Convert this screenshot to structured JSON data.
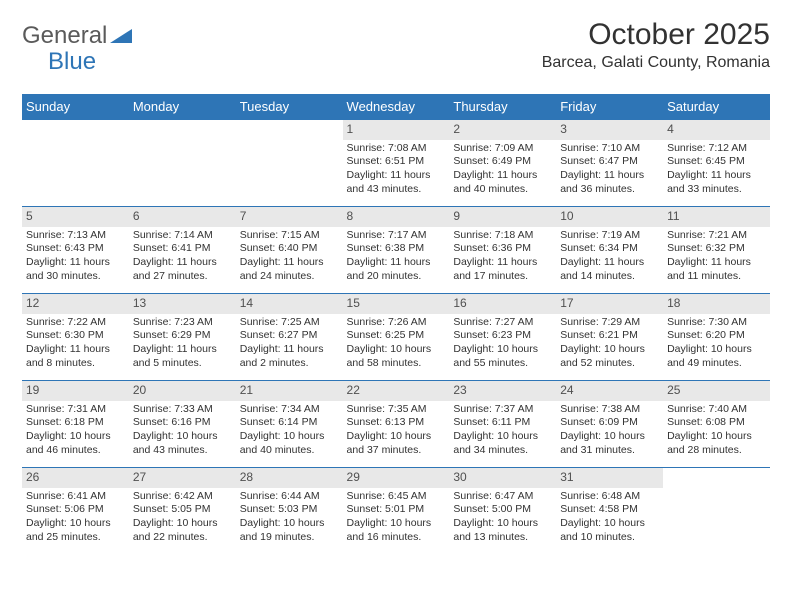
{
  "brand": {
    "main": "General",
    "sub": "Blue"
  },
  "title": "October 2025",
  "location": "Barcea, Galati County, Romania",
  "colors": {
    "header_bg": "#2e75b6",
    "header_fg": "#ffffff",
    "daynum_bg": "#e8e8e8",
    "border": "#2e75b6",
    "text": "#323232",
    "logo_gray": "#5a5a5a",
    "logo_blue": "#2e75b6"
  },
  "day_headers": [
    "Sunday",
    "Monday",
    "Tuesday",
    "Wednesday",
    "Thursday",
    "Friday",
    "Saturday"
  ],
  "weeks": [
    [
      {
        "n": "",
        "sr": "",
        "ss": "",
        "dl": ""
      },
      {
        "n": "",
        "sr": "",
        "ss": "",
        "dl": ""
      },
      {
        "n": "",
        "sr": "",
        "ss": "",
        "dl": ""
      },
      {
        "n": "1",
        "sr": "Sunrise: 7:08 AM",
        "ss": "Sunset: 6:51 PM",
        "dl": "Daylight: 11 hours and 43 minutes."
      },
      {
        "n": "2",
        "sr": "Sunrise: 7:09 AM",
        "ss": "Sunset: 6:49 PM",
        "dl": "Daylight: 11 hours and 40 minutes."
      },
      {
        "n": "3",
        "sr": "Sunrise: 7:10 AM",
        "ss": "Sunset: 6:47 PM",
        "dl": "Daylight: 11 hours and 36 minutes."
      },
      {
        "n": "4",
        "sr": "Sunrise: 7:12 AM",
        "ss": "Sunset: 6:45 PM",
        "dl": "Daylight: 11 hours and 33 minutes."
      }
    ],
    [
      {
        "n": "5",
        "sr": "Sunrise: 7:13 AM",
        "ss": "Sunset: 6:43 PM",
        "dl": "Daylight: 11 hours and 30 minutes."
      },
      {
        "n": "6",
        "sr": "Sunrise: 7:14 AM",
        "ss": "Sunset: 6:41 PM",
        "dl": "Daylight: 11 hours and 27 minutes."
      },
      {
        "n": "7",
        "sr": "Sunrise: 7:15 AM",
        "ss": "Sunset: 6:40 PM",
        "dl": "Daylight: 11 hours and 24 minutes."
      },
      {
        "n": "8",
        "sr": "Sunrise: 7:17 AM",
        "ss": "Sunset: 6:38 PM",
        "dl": "Daylight: 11 hours and 20 minutes."
      },
      {
        "n": "9",
        "sr": "Sunrise: 7:18 AM",
        "ss": "Sunset: 6:36 PM",
        "dl": "Daylight: 11 hours and 17 minutes."
      },
      {
        "n": "10",
        "sr": "Sunrise: 7:19 AM",
        "ss": "Sunset: 6:34 PM",
        "dl": "Daylight: 11 hours and 14 minutes."
      },
      {
        "n": "11",
        "sr": "Sunrise: 7:21 AM",
        "ss": "Sunset: 6:32 PM",
        "dl": "Daylight: 11 hours and 11 minutes."
      }
    ],
    [
      {
        "n": "12",
        "sr": "Sunrise: 7:22 AM",
        "ss": "Sunset: 6:30 PM",
        "dl": "Daylight: 11 hours and 8 minutes."
      },
      {
        "n": "13",
        "sr": "Sunrise: 7:23 AM",
        "ss": "Sunset: 6:29 PM",
        "dl": "Daylight: 11 hours and 5 minutes."
      },
      {
        "n": "14",
        "sr": "Sunrise: 7:25 AM",
        "ss": "Sunset: 6:27 PM",
        "dl": "Daylight: 11 hours and 2 minutes."
      },
      {
        "n": "15",
        "sr": "Sunrise: 7:26 AM",
        "ss": "Sunset: 6:25 PM",
        "dl": "Daylight: 10 hours and 58 minutes."
      },
      {
        "n": "16",
        "sr": "Sunrise: 7:27 AM",
        "ss": "Sunset: 6:23 PM",
        "dl": "Daylight: 10 hours and 55 minutes."
      },
      {
        "n": "17",
        "sr": "Sunrise: 7:29 AM",
        "ss": "Sunset: 6:21 PM",
        "dl": "Daylight: 10 hours and 52 minutes."
      },
      {
        "n": "18",
        "sr": "Sunrise: 7:30 AM",
        "ss": "Sunset: 6:20 PM",
        "dl": "Daylight: 10 hours and 49 minutes."
      }
    ],
    [
      {
        "n": "19",
        "sr": "Sunrise: 7:31 AM",
        "ss": "Sunset: 6:18 PM",
        "dl": "Daylight: 10 hours and 46 minutes."
      },
      {
        "n": "20",
        "sr": "Sunrise: 7:33 AM",
        "ss": "Sunset: 6:16 PM",
        "dl": "Daylight: 10 hours and 43 minutes."
      },
      {
        "n": "21",
        "sr": "Sunrise: 7:34 AM",
        "ss": "Sunset: 6:14 PM",
        "dl": "Daylight: 10 hours and 40 minutes."
      },
      {
        "n": "22",
        "sr": "Sunrise: 7:35 AM",
        "ss": "Sunset: 6:13 PM",
        "dl": "Daylight: 10 hours and 37 minutes."
      },
      {
        "n": "23",
        "sr": "Sunrise: 7:37 AM",
        "ss": "Sunset: 6:11 PM",
        "dl": "Daylight: 10 hours and 34 minutes."
      },
      {
        "n": "24",
        "sr": "Sunrise: 7:38 AM",
        "ss": "Sunset: 6:09 PM",
        "dl": "Daylight: 10 hours and 31 minutes."
      },
      {
        "n": "25",
        "sr": "Sunrise: 7:40 AM",
        "ss": "Sunset: 6:08 PM",
        "dl": "Daylight: 10 hours and 28 minutes."
      }
    ],
    [
      {
        "n": "26",
        "sr": "Sunrise: 6:41 AM",
        "ss": "Sunset: 5:06 PM",
        "dl": "Daylight: 10 hours and 25 minutes."
      },
      {
        "n": "27",
        "sr": "Sunrise: 6:42 AM",
        "ss": "Sunset: 5:05 PM",
        "dl": "Daylight: 10 hours and 22 minutes."
      },
      {
        "n": "28",
        "sr": "Sunrise: 6:44 AM",
        "ss": "Sunset: 5:03 PM",
        "dl": "Daylight: 10 hours and 19 minutes."
      },
      {
        "n": "29",
        "sr": "Sunrise: 6:45 AM",
        "ss": "Sunset: 5:01 PM",
        "dl": "Daylight: 10 hours and 16 minutes."
      },
      {
        "n": "30",
        "sr": "Sunrise: 6:47 AM",
        "ss": "Sunset: 5:00 PM",
        "dl": "Daylight: 10 hours and 13 minutes."
      },
      {
        "n": "31",
        "sr": "Sunrise: 6:48 AM",
        "ss": "Sunset: 4:58 PM",
        "dl": "Daylight: 10 hours and 10 minutes."
      },
      {
        "n": "",
        "sr": "",
        "ss": "",
        "dl": ""
      }
    ]
  ]
}
